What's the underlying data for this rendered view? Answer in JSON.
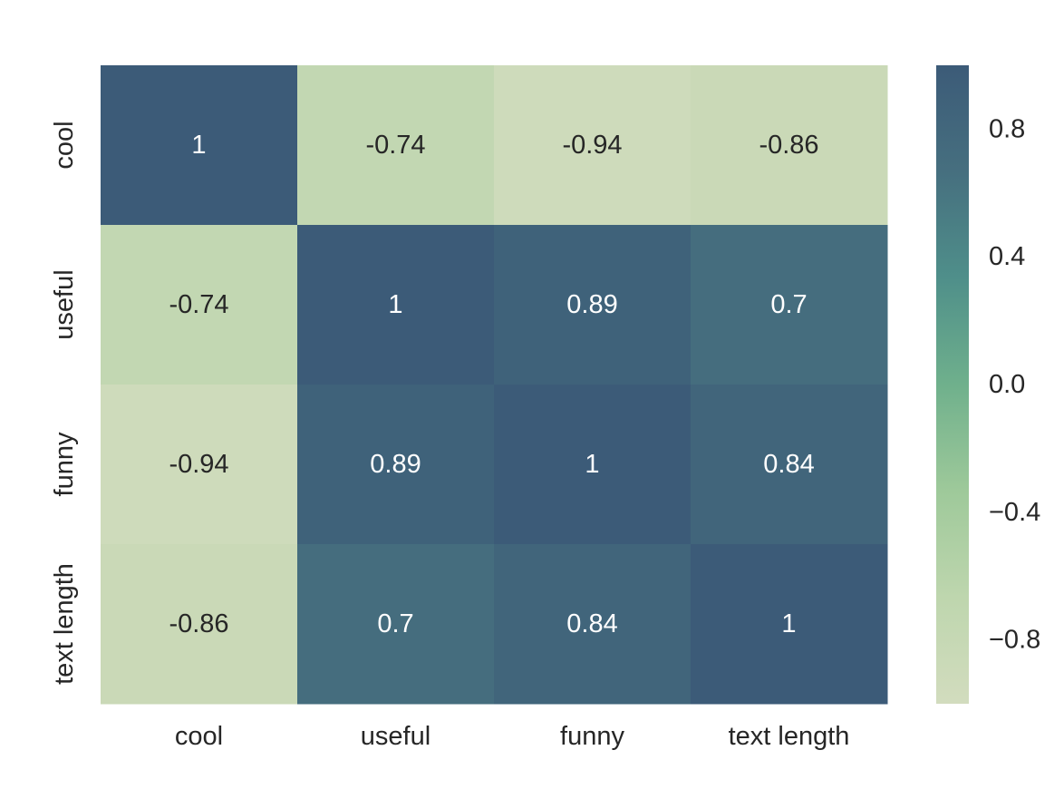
{
  "chart_data": {
    "type": "heatmap",
    "title": "",
    "xlabel": "",
    "ylabel": "",
    "x_categories": [
      "cool",
      "useful",
      "funny",
      "text length"
    ],
    "y_categories": [
      "cool",
      "useful",
      "funny",
      "text length"
    ],
    "values": [
      [
        1,
        -0.74,
        -0.94,
        -0.86
      ],
      [
        -0.74,
        1,
        0.89,
        0.7
      ],
      [
        -0.94,
        0.89,
        1,
        0.84
      ],
      [
        -0.86,
        0.7,
        0.84,
        1
      ]
    ],
    "value_labels": [
      [
        "1",
        "-0.74",
        "-0.94",
        "-0.86"
      ],
      [
        "-0.74",
        "1",
        "0.89",
        "0.7"
      ],
      [
        "-0.94",
        "0.89",
        "1",
        "0.84"
      ],
      [
        "-0.86",
        "0.7",
        "0.84",
        "1"
      ]
    ],
    "colorbar": {
      "range": [
        -1,
        1
      ],
      "ticks": [
        0.8,
        0.4,
        0.0,
        -0.4,
        -0.8
      ],
      "tick_labels": [
        "0.8",
        "0.4",
        "0.0",
        "−0.4",
        "−0.8"
      ]
    },
    "colormap": [
      "#d2dcbe",
      "#bed6ae",
      "#9ec99a",
      "#6fb08c",
      "#4f8f8a",
      "#466f7f",
      "#3c5b78"
    ],
    "annotation_dark_text_color": "#262626",
    "annotation_light_text_color": "#ffffff"
  }
}
